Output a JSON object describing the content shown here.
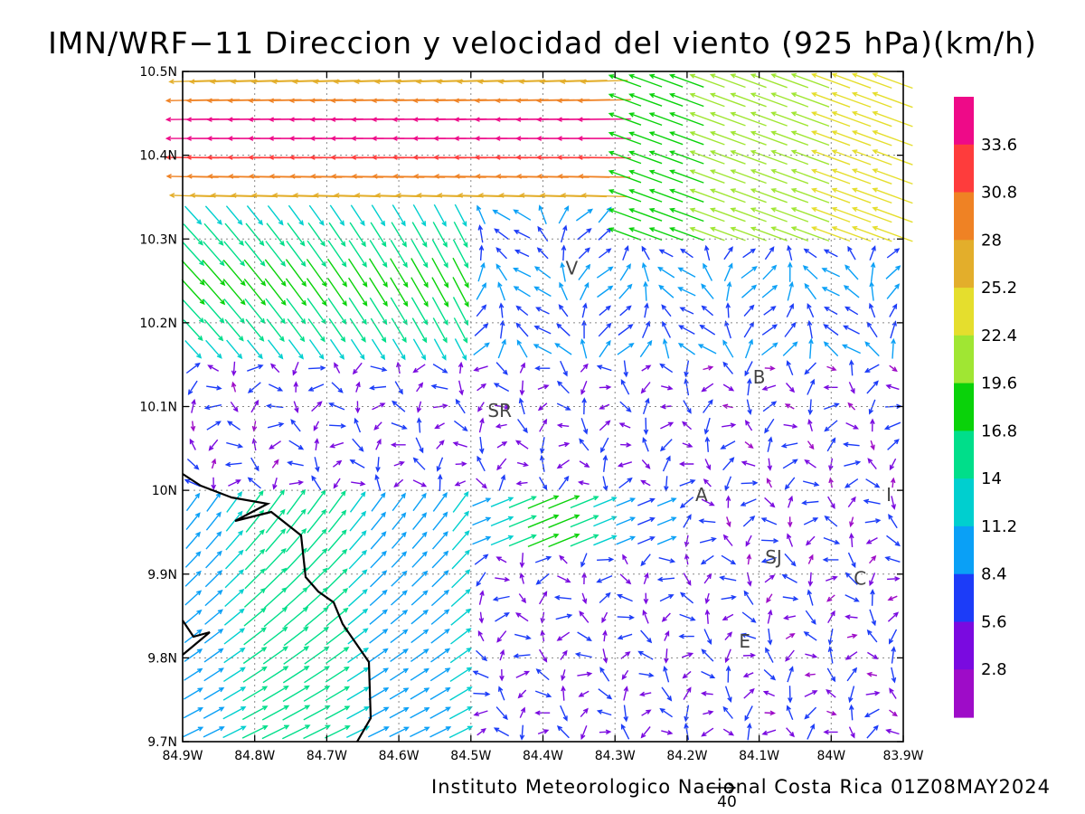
{
  "title": "IMN/WRF−11 Direccion y velocidad del viento (925 hPa)(km/h)",
  "footer": "Instituto Meteorologico Nacional Costa Rica 01Z08MAY2024",
  "reference_vector": {
    "value": "40"
  },
  "map": {
    "lon_range": [
      -84.9,
      -83.9
    ],
    "lat_range": [
      9.7,
      10.5
    ],
    "x_ticks": [
      "84.9W",
      "84.8W",
      "84.7W",
      "84.6W",
      "84.5W",
      "84.4W",
      "84.3W",
      "84.2W",
      "84.1W",
      "84W",
      "83.9W"
    ],
    "y_ticks": [
      "9.7N",
      "9.8N",
      "9.9N",
      "10N",
      "10.1N",
      "10.2N",
      "10.3N",
      "10.4N",
      "10.5N"
    ],
    "grid": true,
    "place_labels": [
      {
        "text": "V",
        "lon": -84.36,
        "lat": 10.265
      },
      {
        "text": "B",
        "lon": -84.1,
        "lat": 10.135
      },
      {
        "text": "SR",
        "lon": -84.46,
        "lat": 10.095
      },
      {
        "text": "A",
        "lon": -84.18,
        "lat": 9.995
      },
      {
        "text": "I",
        "lon": -83.92,
        "lat": 9.995
      },
      {
        "text": "SJ",
        "lon": -84.08,
        "lat": 9.92
      },
      {
        "text": "C",
        "lon": -83.96,
        "lat": 9.895
      },
      {
        "text": "E",
        "lon": -84.12,
        "lat": 9.82
      }
    ]
  },
  "colorbar": {
    "labels": [
      "33.6",
      "30.8",
      "28",
      "25.2",
      "22.4",
      "19.6",
      "16.8",
      "14",
      "11.2",
      "8.4",
      "5.6",
      "2.8"
    ],
    "colors": [
      "#ee0a88",
      "#fe3c3c",
      "#ef8224",
      "#e3ae2b",
      "#e5de2d",
      "#a0e633",
      "#0ad20a",
      "#00de8a",
      "#00cfcf",
      "#0aa0f6",
      "#1c3cf8",
      "#7a0ae0",
      "#9e0cc8"
    ]
  },
  "chart_data": {
    "type": "vector",
    "variable": "wind direction and speed at 925 hPa (km/h)",
    "speed_unit": "km/h",
    "regions": [
      {
        "area": "north strip 10.35N-10.5N, 84.8W-84.3W",
        "direction": "westward",
        "speed_kmh": [
          28,
          36
        ]
      },
      {
        "area": "north strip 10.35N-10.5N, 84.3W-83.9W",
        "direction": "west-northwest",
        "speed_kmh": [
          17,
          25
        ]
      },
      {
        "area": "10.15N-10.35N, 84.9W-84.5W",
        "direction": "southeast",
        "speed_kmh": [
          12,
          19
        ]
      },
      {
        "area": "9.7N-10.0N, 84.9W-84.5W",
        "direction": "northeast",
        "speed_kmh": [
          12,
          17
        ]
      },
      {
        "area": "9.93N-10.0N, 84.5W-84.2W",
        "direction": "east-northeast",
        "speed_kmh": [
          10,
          19
        ]
      },
      {
        "area": "central valley 9.75N-10.15N, 84.3W-83.9W",
        "direction": "variable",
        "speed_kmh": [
          1,
          8
        ]
      }
    ]
  }
}
